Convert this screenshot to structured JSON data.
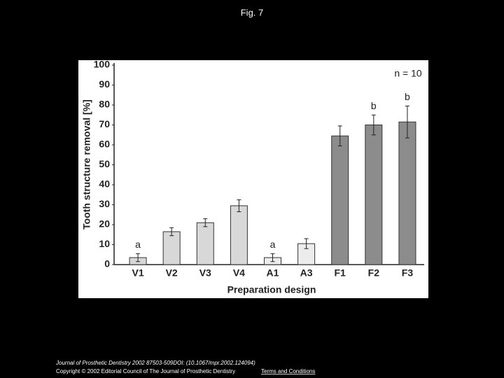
{
  "slide": {
    "title": "Fig. 7",
    "citation": "Journal of Prosthetic Dentistry 2002 87503-509DOI: (10.1067/mpr.2002.124094)",
    "copyright": "Copyright © 2002 Editorial Council of The Journal of Prosthetic Dentistry",
    "link": "Terms and Conditions"
  },
  "chart_data": {
    "type": "bar",
    "ylabel": "Tooth structure removal   [%]",
    "xlabel": "Preparation design",
    "annotation": "n = 10",
    "categories": [
      "V1",
      "V2",
      "V3",
      "V4",
      "A1",
      "A3",
      "F1",
      "F2",
      "F3"
    ],
    "values": [
      3.5,
      16.5,
      21,
      29.5,
      3.5,
      10.5,
      64.5,
      70,
      71.5
    ],
    "errors": [
      2,
      2,
      2,
      3,
      2,
      2.5,
      5,
      5,
      8
    ],
    "bar_labels": [
      "a",
      null,
      null,
      null,
      "a",
      null,
      null,
      "b",
      "b"
    ],
    "colors": [
      "#d8d8d8",
      "#d8d8d8",
      "#d8d8d8",
      "#d8d8d8",
      "#ececec",
      "#ececec",
      "#8c8c8c",
      "#8c8c8c",
      "#8c8c8c"
    ],
    "ylim": [
      0,
      100
    ],
    "yticks": [
      0,
      10,
      20,
      30,
      40,
      50,
      60,
      70,
      80,
      90,
      100
    ]
  }
}
